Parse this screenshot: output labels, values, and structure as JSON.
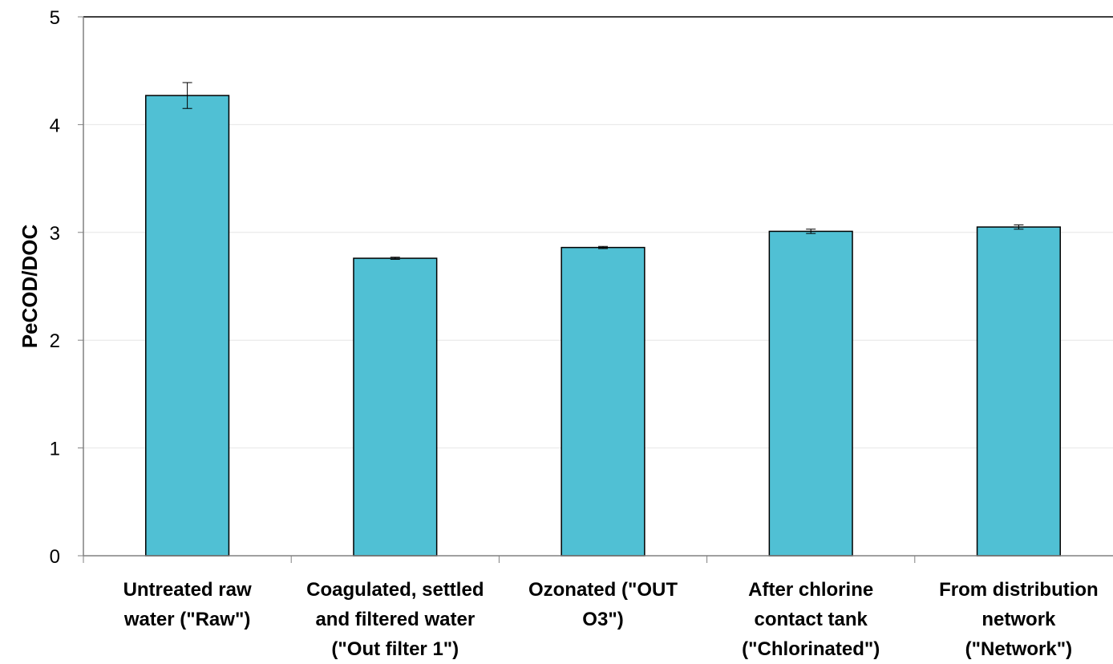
{
  "chart_data": {
    "type": "bar",
    "title": "",
    "xlabel": "",
    "ylabel": "PeCOD/DOC",
    "ylim": [
      0,
      5
    ],
    "yticks": [
      0,
      1,
      2,
      3,
      4,
      5
    ],
    "grid": true,
    "legend": "none",
    "bar_color": "#50C0D4",
    "bar_edge_color": "#000000",
    "gridline_color": "#E6E6E6",
    "categories": [
      [
        "Untreated raw",
        "water (\"Raw\")"
      ],
      [
        "Coagulated, settled",
        "and filtered water",
        "(\"Out filter 1\")"
      ],
      [
        "Ozonated (\"OUT",
        "O3\")"
      ],
      [
        "After chlorine",
        "contact tank",
        "(\"Chlorinated\")"
      ],
      [
        "From distribution",
        "network",
        "(\"Network\")"
      ]
    ],
    "values": [
      4.27,
      2.76,
      2.86,
      3.01,
      3.05
    ],
    "errors": [
      0.12,
      0.01,
      0.01,
      0.02,
      0.02
    ]
  }
}
